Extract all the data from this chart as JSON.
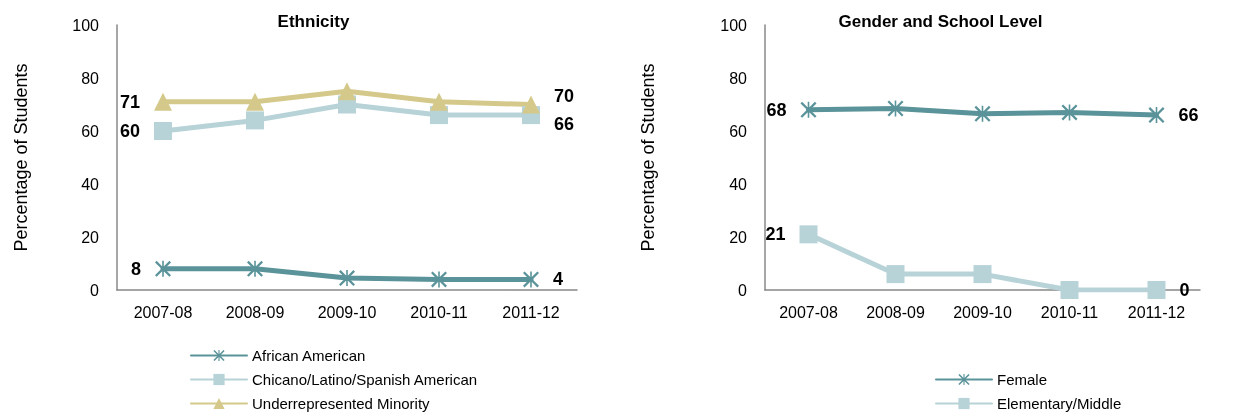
{
  "chart_data": [
    {
      "type": "line",
      "title": "Ethnicity",
      "ylabel": "Percentage of Students",
      "categories": [
        "2007-08",
        "2008-09",
        "2009-10",
        "2010-11",
        "2011-12"
      ],
      "ylim": [
        0,
        100
      ],
      "yticks": [
        0,
        20,
        40,
        60,
        80,
        100
      ],
      "grid": false,
      "legend": "bottom",
      "line_style": "solid",
      "series": [
        {
          "name": "African American",
          "color": "#5a9399",
          "marker": "cross",
          "values": [
            8,
            8,
            4.5,
            4,
            4
          ],
          "value_labels": [
            "8",
            null,
            null,
            null,
            "4"
          ]
        },
        {
          "name": "Chicano/Latino/Spanish American",
          "color": "#b7d3d8",
          "marker": "square",
          "values": [
            60,
            64,
            70,
            66,
            66
          ],
          "value_labels": [
            "60",
            null,
            null,
            null,
            "66"
          ]
        },
        {
          "name": "Underrepresented Minority",
          "color": "#d4c98a",
          "marker": "triangle",
          "values": [
            71,
            71,
            75,
            71,
            70
          ],
          "value_labels": [
            "71",
            null,
            null,
            null,
            "70"
          ]
        }
      ]
    },
    {
      "type": "line",
      "title": "Gender and School Level",
      "ylabel": "Percentage of Students",
      "categories": [
        "2007-08",
        "2008-09",
        "2009-10",
        "2010-11",
        "2011-12"
      ],
      "ylim": [
        0,
        100
      ],
      "yticks": [
        0,
        20,
        40,
        60,
        80,
        100
      ],
      "grid": false,
      "legend": "bottom",
      "line_style": "solid",
      "series": [
        {
          "name": "Female",
          "color": "#5a9399",
          "marker": "cross",
          "values": [
            68,
            68.5,
            66.5,
            67,
            66
          ],
          "value_labels": [
            "68",
            null,
            null,
            null,
            "66"
          ]
        },
        {
          "name": "Elementary/Middle",
          "color": "#b7d3d8",
          "marker": "square",
          "values": [
            21,
            6,
            6,
            0,
            0
          ],
          "value_labels": [
            "21",
            null,
            null,
            null,
            "0"
          ]
        }
      ]
    }
  ]
}
